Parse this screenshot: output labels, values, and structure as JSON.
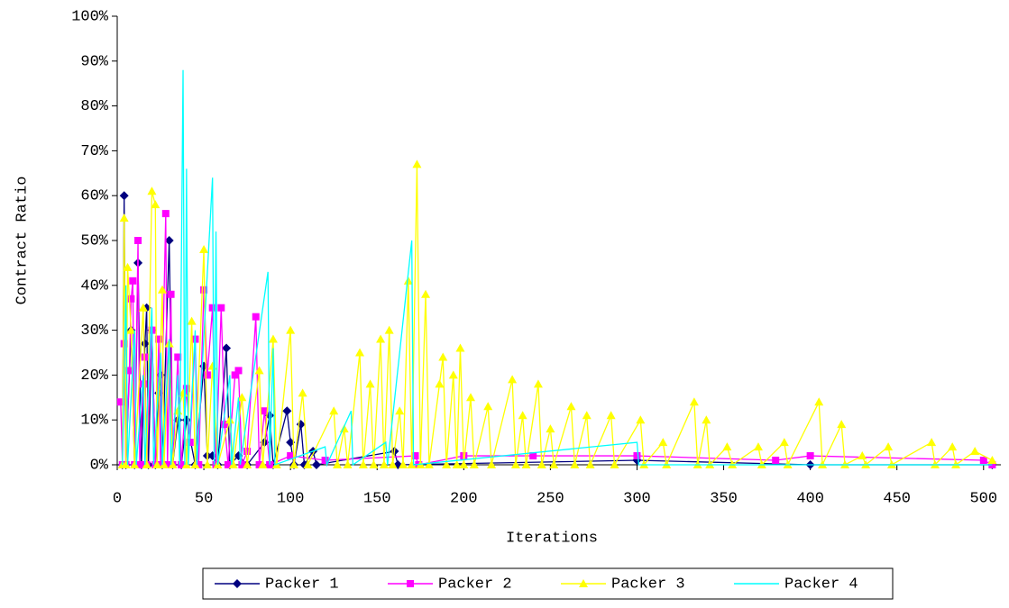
{
  "chart_data": {
    "type": "line",
    "x_label": "Iterations",
    "y_label": "Contract Ratio",
    "xlim": [
      0,
      510
    ],
    "xticks": [
      0,
      50,
      100,
      150,
      200,
      250,
      300,
      350,
      400,
      450,
      500
    ],
    "ylim": [
      0,
      100
    ],
    "yticks": [
      {
        "value": 0,
        "label": "0%"
      },
      {
        "value": 10,
        "label": "10%"
      },
      {
        "value": 20,
        "label": "20%"
      },
      {
        "value": 30,
        "label": "30%"
      },
      {
        "value": 40,
        "label": "40%"
      },
      {
        "value": 50,
        "label": "50%"
      },
      {
        "value": 60,
        "label": "60%"
      },
      {
        "value": 70,
        "label": "70%"
      },
      {
        "value": 80,
        "label": "80%"
      },
      {
        "value": 90,
        "label": "90%"
      },
      {
        "value": 100,
        "label": "100%"
      }
    ],
    "legend": "bottom",
    "series": [
      {
        "name": "Packer 1",
        "color": "#000080",
        "marker": "diamond",
        "x": [
          3,
          4,
          5,
          8,
          10,
          12,
          14,
          16,
          17,
          18,
          20,
          22,
          24,
          25,
          26,
          30,
          32,
          35,
          37,
          40,
          45,
          50,
          52,
          55,
          58,
          63,
          65,
          70,
          75,
          85,
          88,
          90,
          98,
          100,
          102,
          106,
          108,
          113,
          115,
          160,
          162,
          300,
          400,
          505
        ],
        "values": [
          0,
          60,
          0,
          30,
          0,
          45,
          0,
          27,
          35,
          0,
          30,
          0,
          16,
          20,
          0,
          50,
          0,
          10,
          0,
          10,
          0,
          22,
          2,
          2,
          0,
          26,
          0,
          2,
          0,
          5,
          11,
          0,
          12,
          5,
          0,
          9,
          0,
          3,
          0,
          3,
          0,
          1,
          0,
          0
        ]
      },
      {
        "name": "Packer 2",
        "color": "#ff00ff",
        "marker": "square",
        "x": [
          2,
          3,
          4,
          5,
          7,
          8,
          9,
          10,
          12,
          13,
          15,
          16,
          17,
          20,
          22,
          24,
          25,
          28,
          29,
          31,
          32,
          35,
          37,
          40,
          42,
          45,
          47,
          50,
          52,
          55,
          57,
          60,
          62,
          64,
          68,
          70,
          72,
          75,
          80,
          82,
          85,
          88,
          100,
          120,
          172,
          174,
          200,
          240,
          300,
          380,
          400,
          500,
          505
        ],
        "values": [
          14,
          0,
          27,
          0,
          21,
          37,
          41,
          0,
          50,
          0,
          18,
          24,
          0,
          30,
          0,
          28,
          0,
          56,
          0,
          38,
          0,
          24,
          0,
          17,
          5,
          28,
          0,
          39,
          20,
          35,
          0,
          35,
          9,
          0,
          20,
          21,
          0,
          3,
          33,
          0,
          12,
          0,
          2,
          1,
          2,
          0,
          2,
          2,
          2,
          1,
          2,
          1,
          0
        ]
      },
      {
        "name": "Packer 3",
        "color": "#ffff00",
        "marker": "triangle",
        "x": [
          3,
          4,
          5,
          6,
          8,
          10,
          15,
          17,
          20,
          22,
          23,
          26,
          27,
          30,
          32,
          35,
          38,
          40,
          43,
          45,
          50,
          52,
          55,
          58,
          65,
          67,
          72,
          75,
          82,
          84,
          90,
          92,
          100,
          102,
          107,
          110,
          125,
          127,
          131,
          133,
          140,
          142,
          146,
          148,
          152,
          154,
          157,
          159,
          163,
          165,
          168,
          170,
          173,
          175,
          178,
          180,
          186,
          188,
          190,
          194,
          196,
          198,
          200,
          204,
          206,
          214,
          216,
          228,
          230,
          234,
          236,
          243,
          245,
          250,
          252,
          262,
          264,
          271,
          273,
          285,
          287,
          302,
          304,
          315,
          317,
          333,
          335,
          340,
          342,
          352,
          355,
          370,
          372,
          385,
          387,
          405,
          407,
          418,
          420,
          430,
          432,
          445,
          447,
          470,
          472,
          482,
          484,
          495,
          505
        ],
        "values": [
          0,
          55,
          0,
          44,
          30,
          0,
          35,
          0,
          61,
          58,
          0,
          39,
          0,
          27,
          0,
          12,
          16,
          0,
          32,
          0,
          48,
          0,
          22,
          0,
          10,
          0,
          15,
          0,
          21,
          0,
          28,
          0,
          30,
          0,
          16,
          0,
          12,
          0,
          8,
          0,
          25,
          0,
          18,
          0,
          28,
          0,
          30,
          0,
          12,
          0,
          41,
          0,
          67,
          0,
          38,
          0,
          18,
          24,
          0,
          20,
          0,
          26,
          0,
          15,
          0,
          13,
          0,
          19,
          0,
          11,
          0,
          18,
          0,
          8,
          0,
          13,
          0,
          11,
          0,
          11,
          0,
          10,
          0,
          5,
          0,
          14,
          0,
          10,
          0,
          4,
          0,
          4,
          0,
          5,
          0,
          14,
          0,
          9,
          0,
          2,
          0,
          4,
          0,
          5,
          0,
          4,
          0,
          3,
          1
        ]
      },
      {
        "name": "Packer 4",
        "color": "#00ffff",
        "marker": null,
        "x": [
          3,
          5,
          6,
          10,
          11,
          15,
          16,
          20,
          21,
          25,
          26,
          30,
          31,
          35,
          36,
          38,
          39,
          40,
          41,
          45,
          46,
          55,
          56,
          57,
          58,
          65,
          66,
          70,
          71,
          87,
          88,
          90,
          91,
          120,
          121,
          135,
          136,
          155,
          156,
          170,
          171,
          300,
          301,
          505
        ],
        "values": [
          0,
          40,
          0,
          30,
          0,
          20,
          0,
          35,
          0,
          25,
          0,
          28,
          0,
          20,
          0,
          88,
          0,
          66,
          0,
          30,
          0,
          64,
          0,
          52,
          0,
          20,
          0,
          15,
          0,
          43,
          0,
          26,
          0,
          4,
          0,
          12,
          0,
          5,
          0,
          50,
          0,
          5,
          0,
          0
        ]
      }
    ]
  }
}
